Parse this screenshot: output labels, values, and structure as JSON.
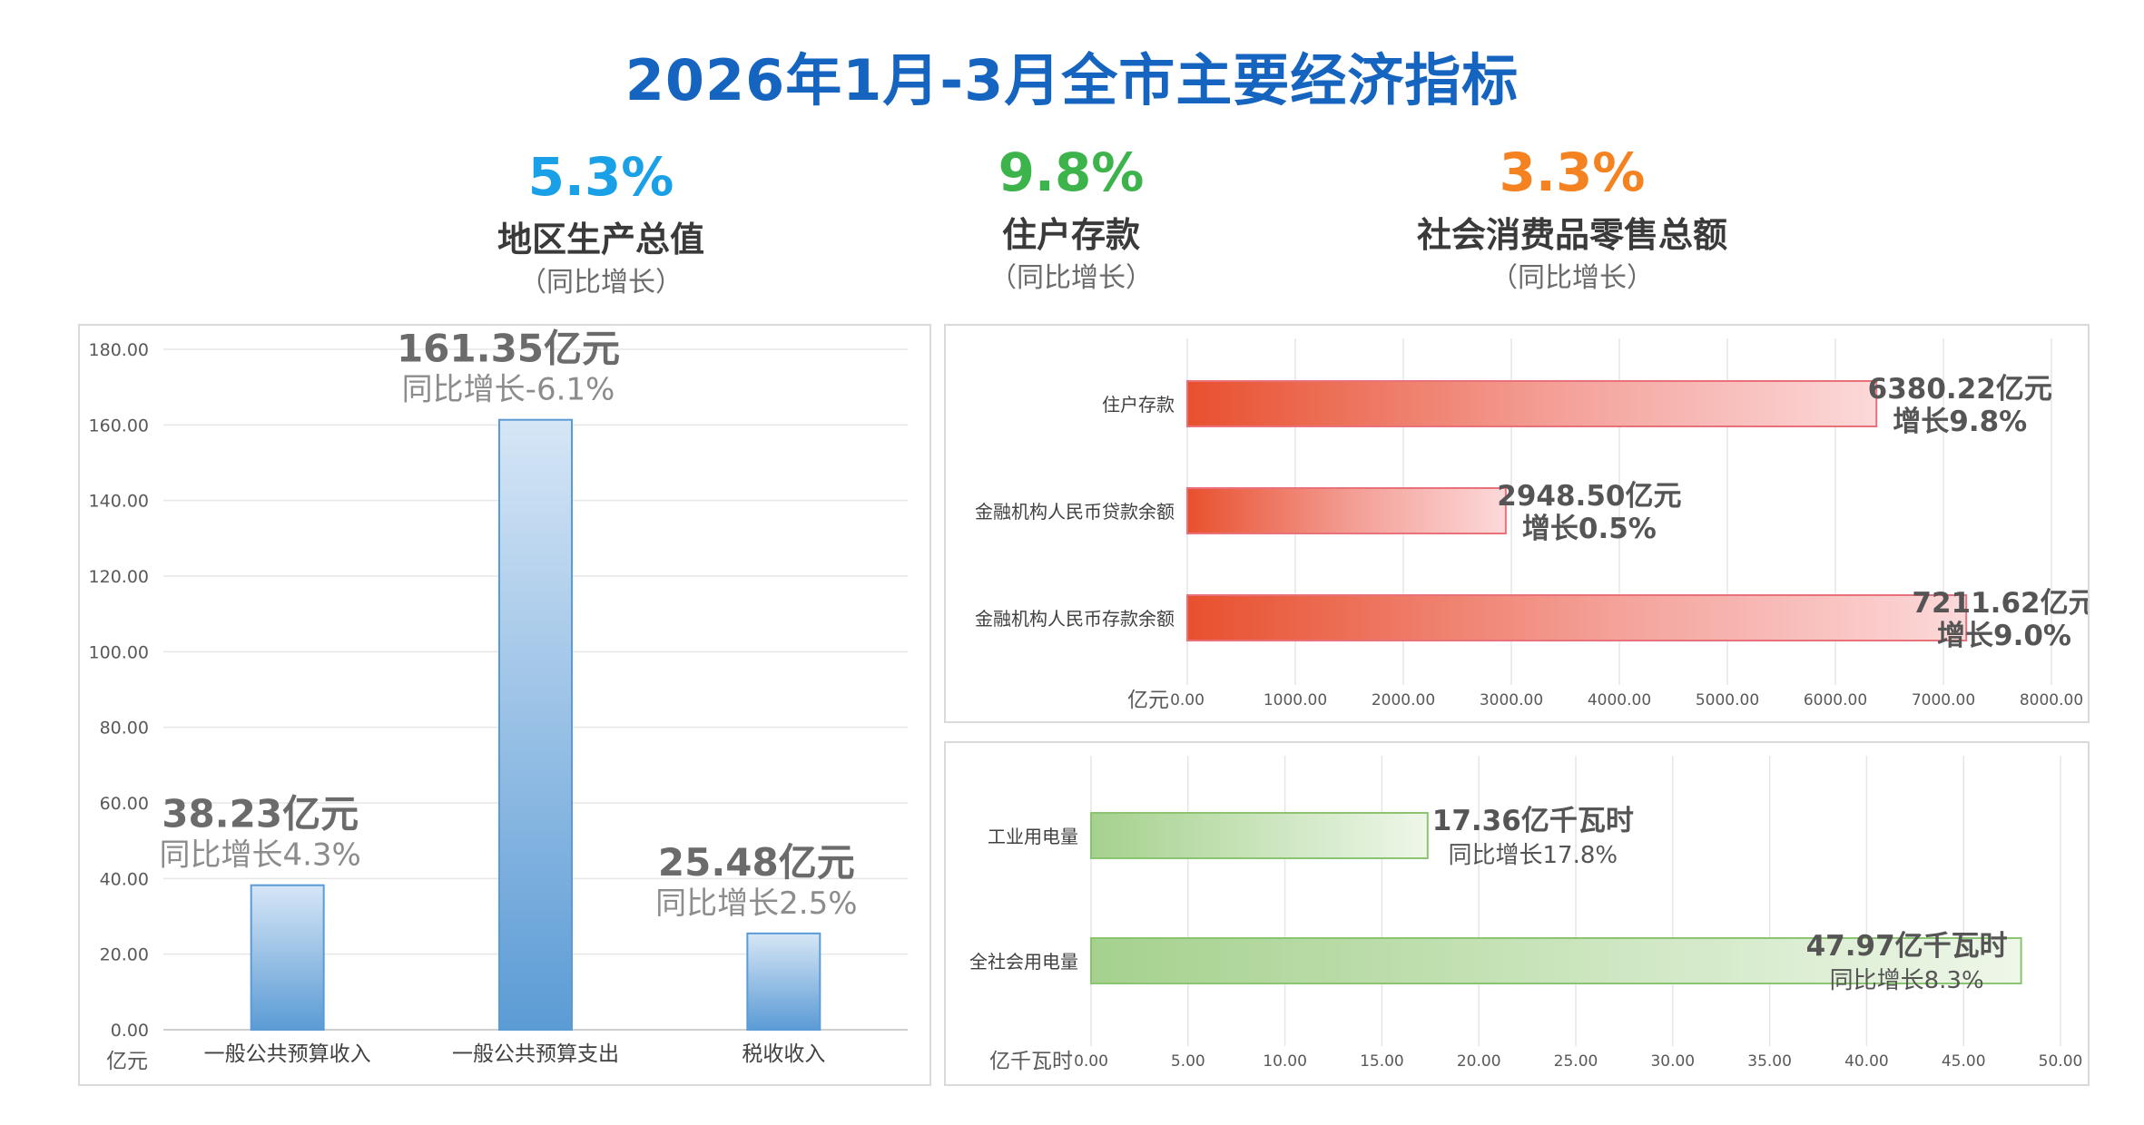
{
  "title": "2026年1月-3月全市主要经济指标",
  "kpis": [
    {
      "value": "5.3%",
      "label": "地区生产总值",
      "sub": "（同比增长）",
      "color": "#1aa0e6"
    },
    {
      "value": "9.8%",
      "label": "住户存款",
      "sub": "（同比增长）",
      "color": "#3cb44b"
    },
    {
      "value": "3.3%",
      "label": "社会消费品零售总额",
      "sub": "（同比增长）",
      "color": "#f58220"
    }
  ],
  "chart_data": [
    {
      "type": "bar",
      "categories": [
        "一般公共预算收入",
        "一般公共预算支出",
        "税收收入"
      ],
      "values": [
        38.23,
        161.35,
        25.48
      ],
      "value_labels": [
        "38.23亿元",
        "161.35亿元",
        "25.48亿元"
      ],
      "growth_labels": [
        "同比增长4.3%",
        "同比增长-6.1%",
        "同比增长2.5%"
      ],
      "ylabel": "亿元",
      "ylim": [
        0,
        180
      ],
      "yticks": [
        "0.00",
        "20.00",
        "40.00",
        "60.00",
        "80.00",
        "100.00",
        "120.00",
        "140.00",
        "160.00",
        "180.00"
      ],
      "grid": true,
      "color": "#5b9bd5"
    },
    {
      "type": "bar",
      "orientation": "horizontal",
      "categories": [
        "住户存款",
        "金融机构人民币贷款余额",
        "金融机构人民币存款余额"
      ],
      "values": [
        6380.22,
        2948.5,
        7211.62
      ],
      "value_labels": [
        "6380.22亿元",
        "2948.50亿元",
        "7211.62亿元"
      ],
      "growth_labels": [
        "增长9.8%",
        "增长0.5%",
        "增长9.0%"
      ],
      "xlabel": "亿元",
      "xlim": [
        0,
        8000
      ],
      "xticks": [
        "0.00",
        "1000.00",
        "2000.00",
        "3000.00",
        "4000.00",
        "5000.00",
        "6000.00",
        "7000.00",
        "8000.00"
      ],
      "grid": true,
      "color": "#e8502e"
    },
    {
      "type": "bar",
      "orientation": "horizontal",
      "categories": [
        "工业用电量",
        "全社会用电量"
      ],
      "values": [
        17.36,
        47.97
      ],
      "value_labels": [
        "17.36亿千瓦时",
        "47.97亿千瓦时"
      ],
      "growth_labels": [
        "同比增长17.8%",
        "同比增长8.3%"
      ],
      "xlabel": "亿千瓦时",
      "xlim": [
        0,
        50
      ],
      "xticks": [
        "0.00",
        "5.00",
        "10.00",
        "15.00",
        "20.00",
        "25.00",
        "30.00",
        "35.00",
        "40.00",
        "45.00",
        "50.00"
      ],
      "grid": true,
      "color": "#8cc572"
    }
  ]
}
